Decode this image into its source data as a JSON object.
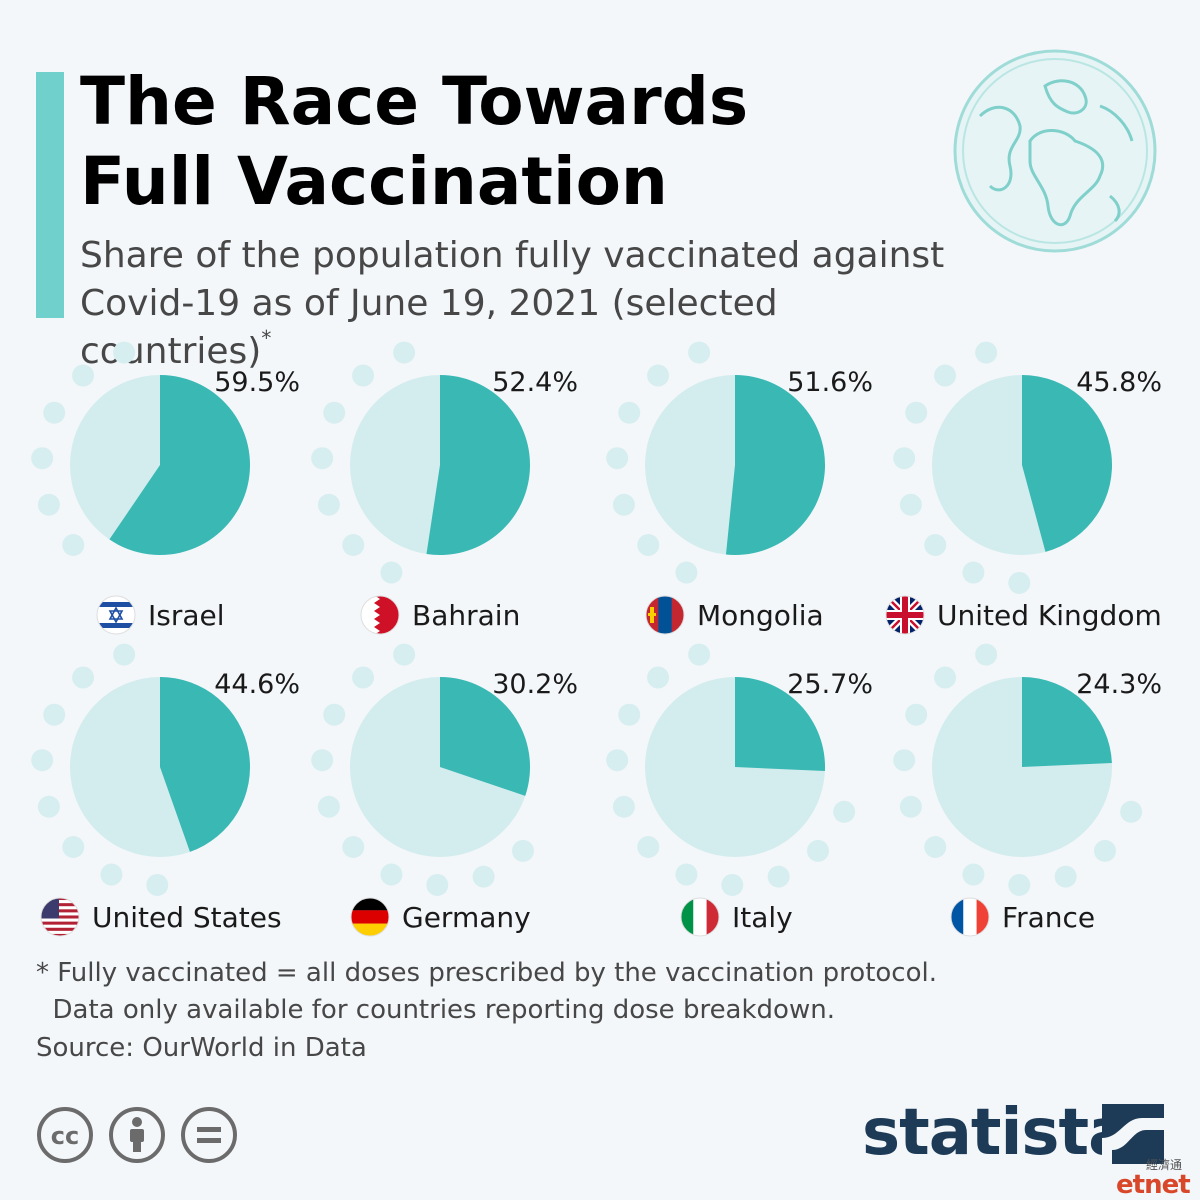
{
  "title_line1": "The Race Towards",
  "title_line2": "Full Vaccination",
  "subtitle_line1": "Share of the population fully vaccinated against",
  "subtitle_line2": "Covid-19 as of June 19, 2021 (selected countries)",
  "subtitle_mark": "*",
  "colors": {
    "accent": "#6fd0cc",
    "pie_filled": "#3ab8b4",
    "pie_empty": "#d3ecee",
    "dots": "#d7eef0",
    "brand": "#1d3a56"
  },
  "chart_data": {
    "type": "pie",
    "unit": "%",
    "countries": [
      {
        "name": "Israel",
        "value": 59.5,
        "label": "59.5%",
        "flag": "israel-flag-icon"
      },
      {
        "name": "Bahrain",
        "value": 52.4,
        "label": "52.4%",
        "flag": "bahrain-flag-icon"
      },
      {
        "name": "Mongolia",
        "value": 51.6,
        "label": "51.6%",
        "flag": "mongolia-flag-icon"
      },
      {
        "name": "United Kingdom",
        "value": 45.8,
        "label": "45.8%",
        "flag": "uk-flag-icon"
      },
      {
        "name": "United States",
        "value": 44.6,
        "label": "44.6%",
        "flag": "us-flag-icon"
      },
      {
        "name": "Germany",
        "value": 30.2,
        "label": "30.2%",
        "flag": "germany-flag-icon"
      },
      {
        "name": "Italy",
        "value": 25.7,
        "label": "25.7%",
        "flag": "italy-flag-icon"
      },
      {
        "name": "France",
        "value": 24.3,
        "label": "24.3%",
        "flag": "france-flag-icon"
      }
    ]
  },
  "footnote_line1": "* Fully vaccinated = all doses prescribed by the vaccination protocol.",
  "footnote_line2": "  Data only available for countries reporting dose breakdown.",
  "source": "Source: OurWorld in Data",
  "license_icons": [
    "cc-icon",
    "attribution-icon",
    "no-derivatives-icon"
  ],
  "brand": "statista",
  "watermark_cn": "經濟通",
  "watermark": "etnet"
}
